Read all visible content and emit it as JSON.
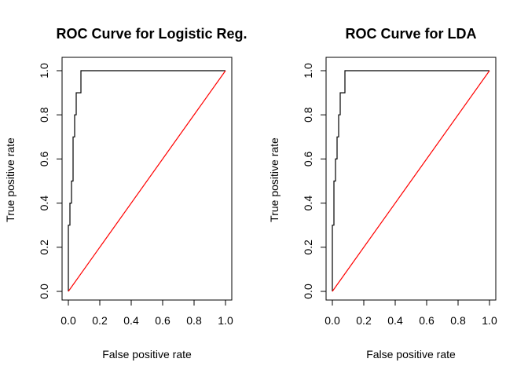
{
  "chart_data": [
    {
      "type": "line",
      "title": "ROC Curve for Logistic Reg.",
      "xlabel": "False positive rate",
      "ylabel": "True positive rate",
      "xlim": [
        0,
        1
      ],
      "ylim": [
        0,
        1
      ],
      "xticks": [
        "0.0",
        "0.2",
        "0.4",
        "0.6",
        "0.8",
        "1.0"
      ],
      "yticks": [
        "0.0",
        "0.2",
        "0.4",
        "0.6",
        "0.8",
        "1.0"
      ],
      "grid": false,
      "series": [
        {
          "color": "#000000",
          "x": [
            0.0,
            0.0,
            0.01,
            0.01,
            0.02,
            0.02,
            0.03,
            0.03,
            0.04,
            0.04,
            0.05,
            0.05,
            0.07,
            0.07,
            0.08,
            0.08,
            1.0
          ],
          "y": [
            0.0,
            0.3,
            0.3,
            0.4,
            0.4,
            0.5,
            0.5,
            0.7,
            0.7,
            0.8,
            0.8,
            0.9,
            0.9,
            0.9,
            0.9,
            1.0,
            1.0
          ]
        },
        {
          "color": "#ff0000",
          "x": [
            0,
            1
          ],
          "y": [
            0,
            1
          ]
        }
      ]
    },
    {
      "type": "line",
      "title": "ROC Curve for LDA",
      "xlabel": "False positive rate",
      "ylabel": "True positive rate",
      "xlim": [
        0,
        1
      ],
      "ylim": [
        0,
        1
      ],
      "xticks": [
        "0.0",
        "0.2",
        "0.4",
        "0.6",
        "0.8",
        "1.0"
      ],
      "yticks": [
        "0.0",
        "0.2",
        "0.4",
        "0.6",
        "0.8",
        "1.0"
      ],
      "grid": false,
      "series": [
        {
          "color": "#000000",
          "x": [
            0.0,
            0.0,
            0.01,
            0.01,
            0.02,
            0.02,
            0.03,
            0.03,
            0.04,
            0.04,
            0.05,
            0.05,
            0.06,
            0.06,
            0.08,
            0.08,
            1.0
          ],
          "y": [
            0.0,
            0.3,
            0.3,
            0.5,
            0.5,
            0.6,
            0.6,
            0.7,
            0.7,
            0.8,
            0.8,
            0.9,
            0.9,
            0.9,
            0.9,
            1.0,
            1.0
          ]
        },
        {
          "color": "#ff0000",
          "x": [
            0,
            1
          ],
          "y": [
            0,
            1
          ]
        }
      ]
    }
  ]
}
